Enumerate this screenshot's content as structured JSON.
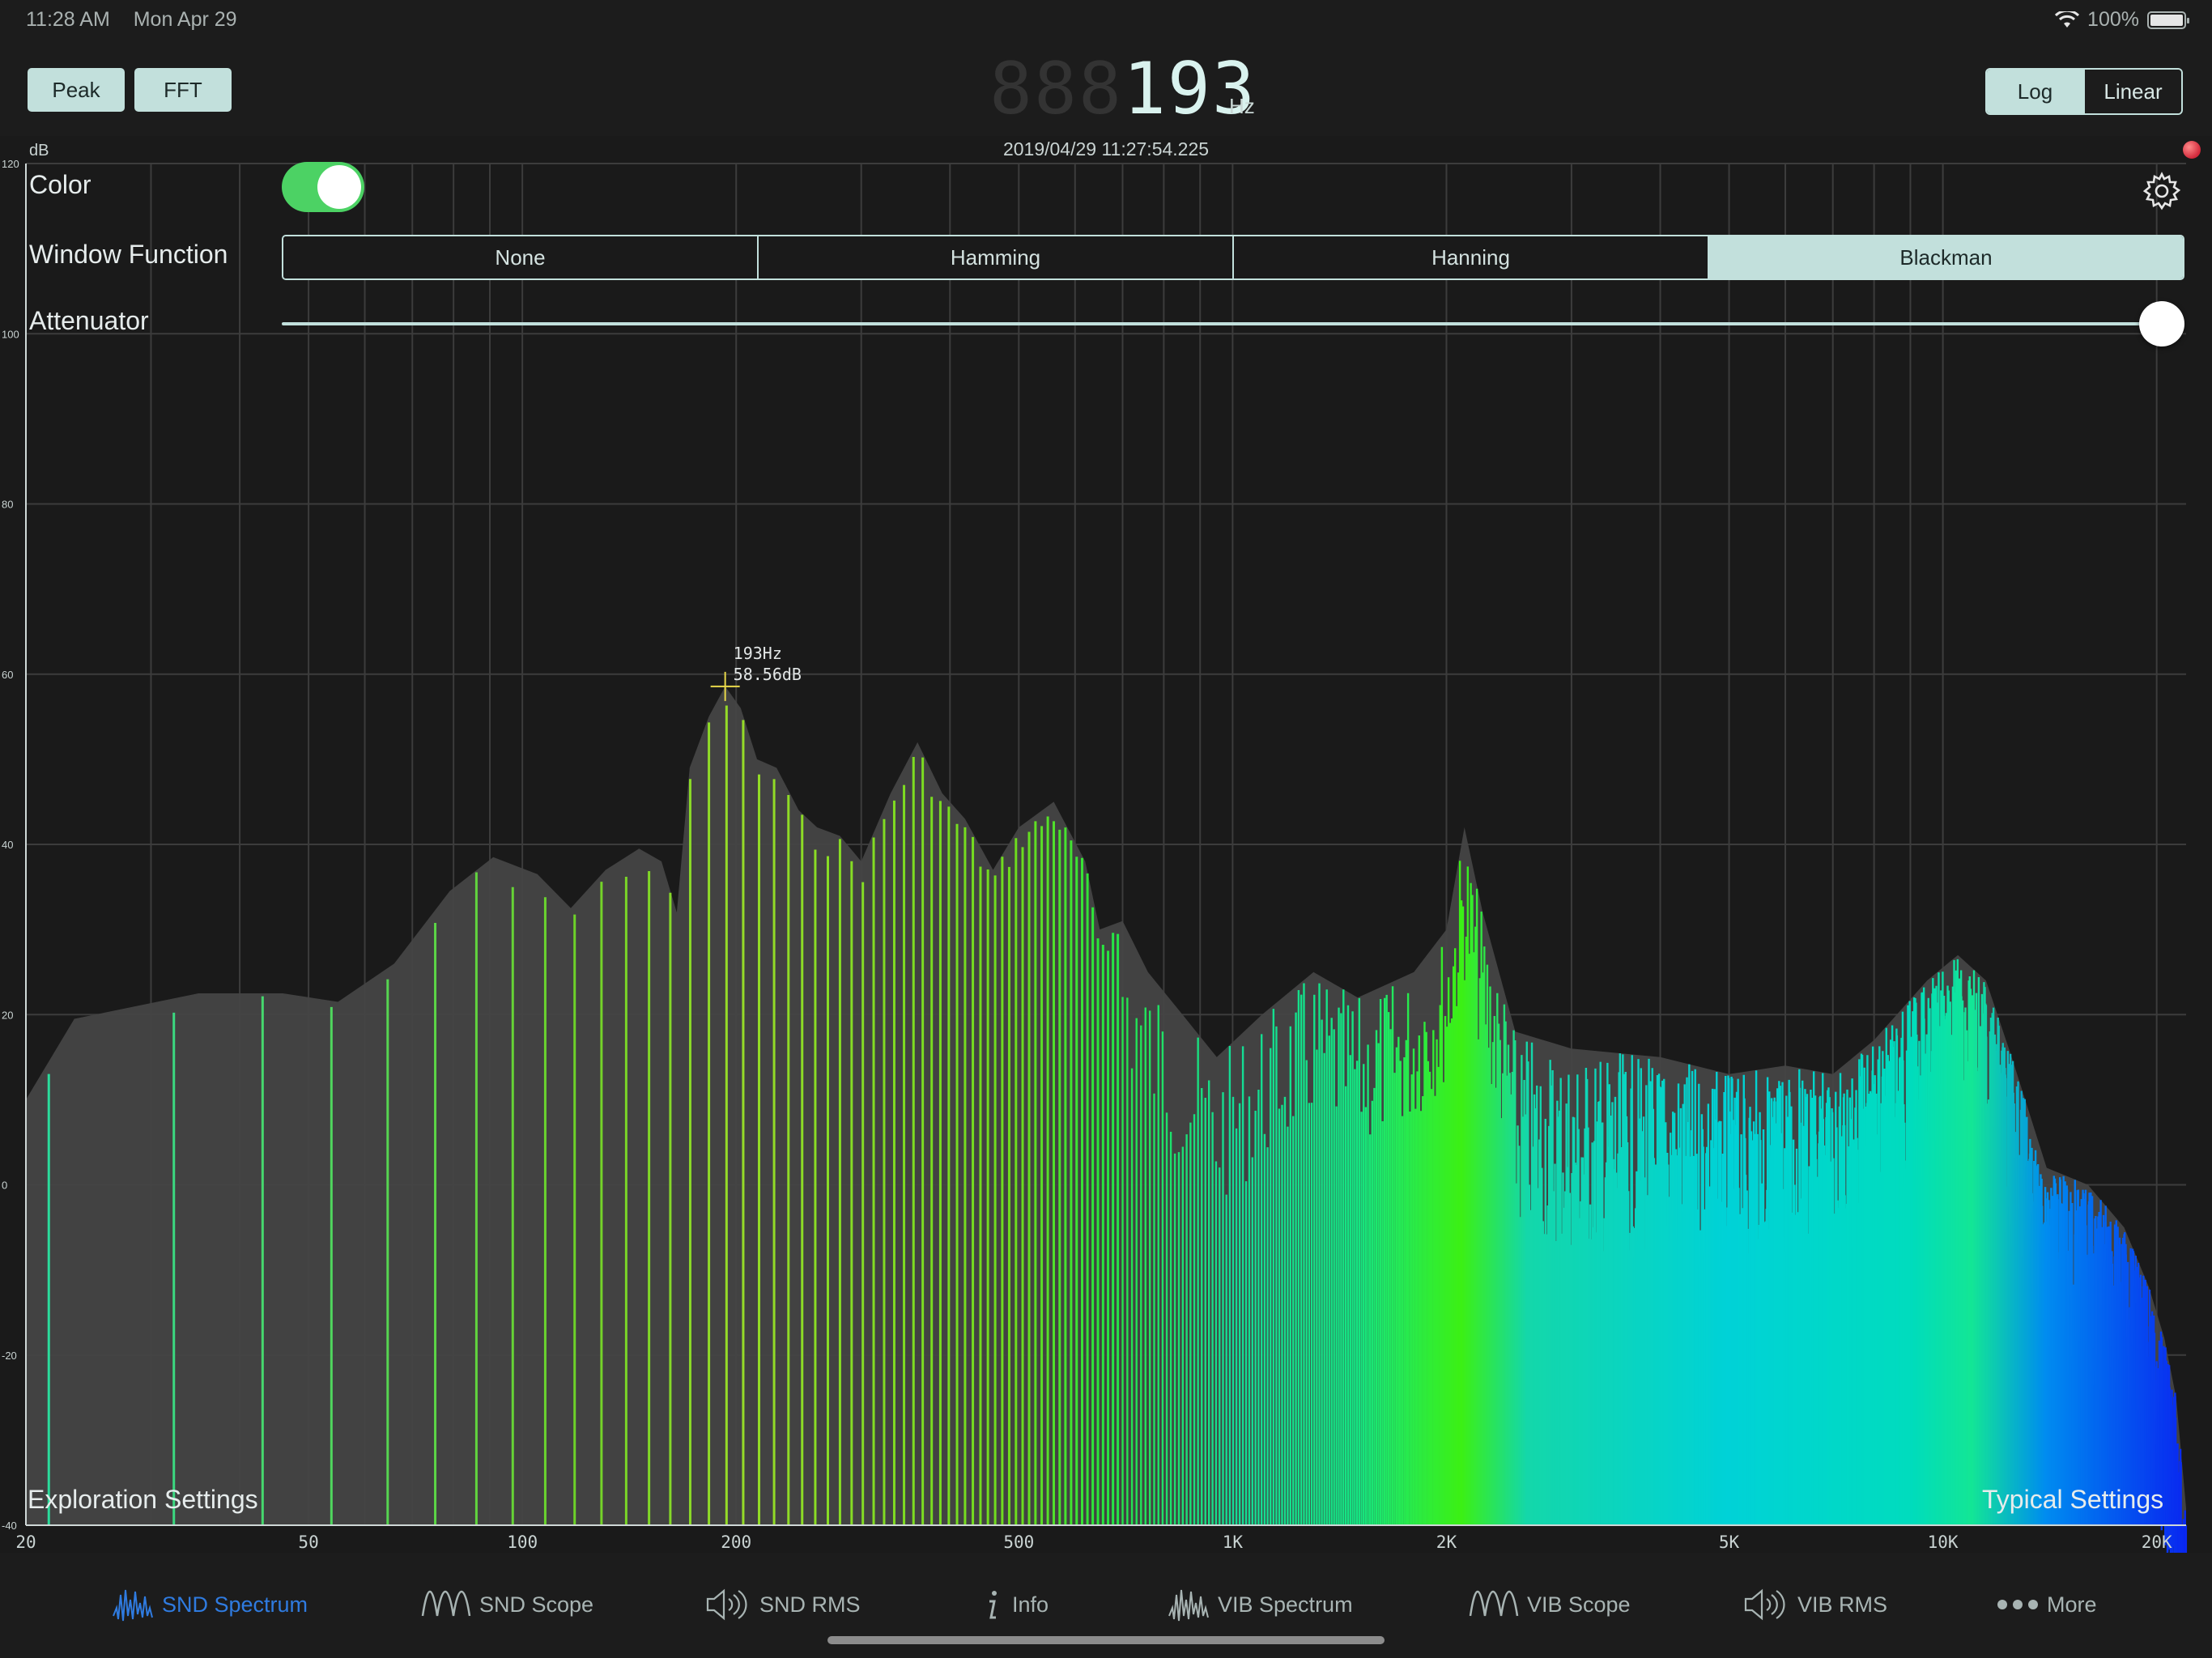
{
  "status_bar": {
    "time": "11:28 AM",
    "date": "Mon Apr 29",
    "battery": "100%"
  },
  "toolbar": {
    "peak_label": "Peak",
    "fft_label": "FFT",
    "freq_ghost": "888",
    "freq_value": "193",
    "freq_unit": "Hz",
    "scale_options": [
      "Log",
      "Linear"
    ],
    "scale_selected": "Log"
  },
  "plot": {
    "timestamp": "2019/04/29 11:27:54.225",
    "y_unit": "dB",
    "peak_label_freq": "193Hz",
    "peak_label_db": "58.56dB"
  },
  "settings": {
    "color_label": "Color",
    "color_on": true,
    "window_label": "Window Function",
    "window_options": [
      "None",
      "Hamming",
      "Hanning",
      "Blackman"
    ],
    "window_selected": "Blackman",
    "attenuator_label": "Attenuator",
    "attenuator_value": 1.0,
    "exploration_label": "Exploration Settings",
    "typical_label": "Typical Settings"
  },
  "tabs": [
    {
      "label": "SND Spectrum",
      "icon": "spectrum-icon",
      "active": true
    },
    {
      "label": "SND Scope",
      "icon": "wave-icon",
      "active": false
    },
    {
      "label": "SND RMS",
      "icon": "speaker-icon",
      "active": false
    },
    {
      "label": "Info",
      "icon": "info-icon",
      "active": false
    },
    {
      "label": "VIB Spectrum",
      "icon": "spectrum-icon",
      "active": false
    },
    {
      "label": "VIB Scope",
      "icon": "wave-icon",
      "active": false
    },
    {
      "label": "VIB RMS",
      "icon": "speaker-icon",
      "active": false
    },
    {
      "label": "More",
      "icon": "more-icon",
      "active": false
    }
  ],
  "colors": {
    "accent": "#c2e0dc",
    "tab_active": "#2f7be0",
    "switch_on": "#4cd264",
    "peak_marker": "#e8d84a"
  },
  "chart_data": {
    "type": "bar",
    "title": "",
    "xlabel": "",
    "ylabel": "dB",
    "x_scale": "log",
    "xlim": [
      20,
      22000
    ],
    "ylim": [
      -40,
      120
    ],
    "grid": true,
    "x_ticks": [
      {
        "v": 20,
        "label": "20"
      },
      {
        "v": 50,
        "label": "50"
      },
      {
        "v": 100,
        "label": "100"
      },
      {
        "v": 200,
        "label": "200"
      },
      {
        "v": 500,
        "label": "500"
      },
      {
        "v": 1000,
        "label": "1K"
      },
      {
        "v": 2000,
        "label": "2K"
      },
      {
        "v": 5000,
        "label": "5K"
      },
      {
        "v": 10000,
        "label": "10K"
      },
      {
        "v": 20000,
        "label": "20K"
      }
    ],
    "y_ticks": [
      -40,
      -20,
      0,
      20,
      40,
      60,
      80,
      100,
      120
    ],
    "peak": {
      "freq": 193,
      "db": 58.56
    },
    "envelope": [
      [
        20,
        10
      ],
      [
        23.4,
        19.5
      ],
      [
        35,
        22.5
      ],
      [
        46,
        22.5
      ],
      [
        55,
        21.5
      ],
      [
        66,
        26
      ],
      [
        79,
        34.5
      ],
      [
        91,
        38.5
      ],
      [
        105,
        36.5
      ],
      [
        117,
        32.5
      ],
      [
        131,
        37
      ],
      [
        146,
        39.5
      ],
      [
        157,
        38
      ],
      [
        165,
        32
      ],
      [
        172,
        49
      ],
      [
        183,
        55
      ],
      [
        193,
        58.56
      ],
      [
        203,
        56
      ],
      [
        214,
        50
      ],
      [
        228,
        49
      ],
      [
        245,
        44
      ],
      [
        260,
        42
      ],
      [
        280,
        41
      ],
      [
        300,
        38
      ],
      [
        330,
        46
      ],
      [
        360,
        52
      ],
      [
        390,
        46
      ],
      [
        420,
        43
      ],
      [
        460,
        37
      ],
      [
        500,
        42
      ],
      [
        560,
        45
      ],
      [
        620,
        38
      ],
      [
        650,
        30
      ],
      [
        700,
        31
      ],
      [
        760,
        25
      ],
      [
        850,
        20
      ],
      [
        950,
        15
      ],
      [
        1100,
        20
      ],
      [
        1300,
        25
      ],
      [
        1500,
        22
      ],
      [
        1800,
        25
      ],
      [
        2000,
        30
      ],
      [
        2120,
        42
      ],
      [
        2250,
        32
      ],
      [
        2500,
        18
      ],
      [
        3000,
        16
      ],
      [
        4000,
        15
      ],
      [
        5000,
        13
      ],
      [
        6000,
        14
      ],
      [
        7000,
        13
      ],
      [
        8000,
        17
      ],
      [
        9500,
        24
      ],
      [
        10500,
        27
      ],
      [
        11500,
        24
      ],
      [
        12500,
        15
      ],
      [
        14000,
        2
      ],
      [
        16000,
        0
      ],
      [
        18000,
        -5
      ],
      [
        19500,
        -12
      ],
      [
        20500,
        -18
      ],
      [
        21300,
        -25
      ],
      [
        22000,
        -38
      ]
    ]
  }
}
